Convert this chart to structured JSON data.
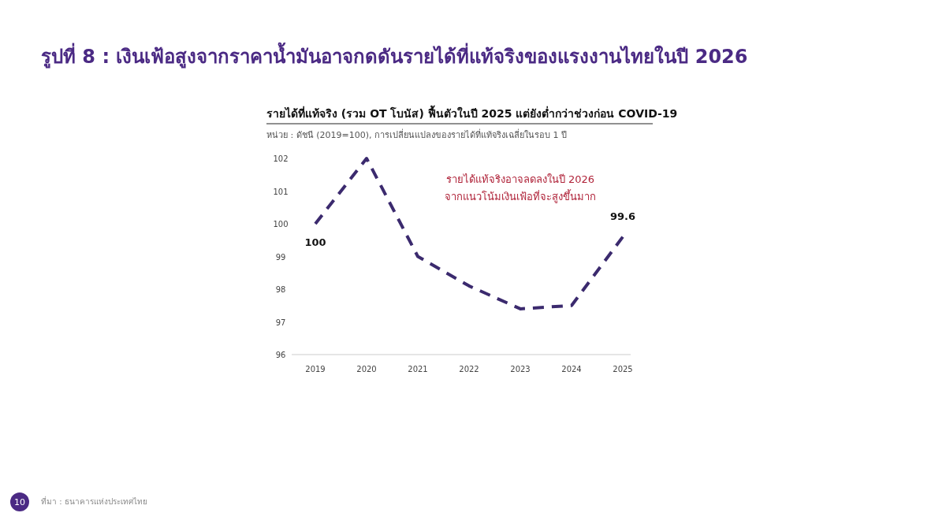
{
  "chart_data": {
    "type": "line",
    "title": "รูปที่ 8 : เงินเฟ้อสูงจากราคาน้ำมันอาจกดดันรายได้ที่แท้จริงของแรงงานไทยในปี 2026",
    "subtitle": "รายได้ที่แท้จริง (รวม OT โบนัส) ฟื้นตัวในปี 2025 แต่ยังต่ำกว่าช่วงก่อน COVID-19",
    "categories": [
      "2019",
      "2020",
      "2021",
      "2022",
      "2023",
      "2024",
      "2025"
    ],
    "series": [
      {
        "color": "#3b2a6e",
        "values": [
          100,
          102.0,
          99.0,
          98.1,
          97.4,
          97.5,
          99.6
        ],
        "value_labels": [
          "100",
          null,
          null,
          null,
          null,
          null,
          "99.6"
        ]
      }
    ],
    "ylim": [
      96,
      102
    ],
    "yticks": [
      96,
      97,
      98,
      99,
      100,
      101,
      102
    ],
    "grid": false,
    "marker": "none",
    "line_style": "dashed",
    "annotations": [
      "หน่วย : ดัชนี (2019=100), การเปลี่ยนแปลงของรายได้ที่แท้จริงเฉลี่ยในรอบ 1 ปี",
      "รายได้แท้จริงอาจลดลงในปี 2026\nจากแนวโน้มเงินเฟ้อที่จะสูงขึ้นมาก",
      "ที่มา : ธนาคารแห่งประเทศไทย",
      "10"
    ]
  }
}
